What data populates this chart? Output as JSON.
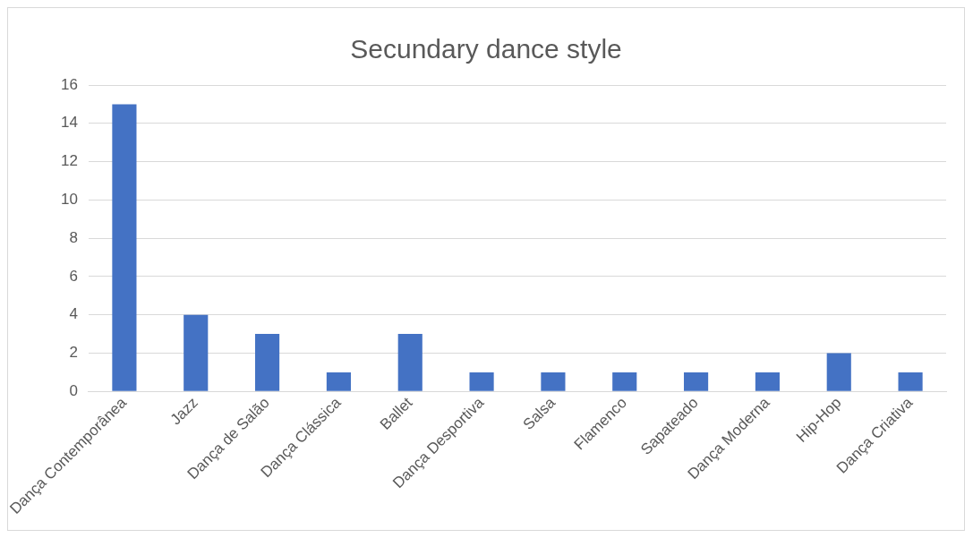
{
  "chart_data": {
    "type": "bar",
    "title": "Secundary dance style",
    "categories": [
      "Dança Contemporânea",
      "Jazz",
      "Dança de Salão",
      "Dança Clássica",
      "Ballet",
      "Dança Desportiva",
      "Salsa",
      "Flamenco",
      "Sapateado",
      "Dança Moderna",
      "Hip-Hop",
      "Dança Criativa"
    ],
    "values": [
      15,
      4,
      3,
      1,
      3,
      1,
      1,
      1,
      1,
      1,
      2,
      1
    ],
    "color": "#4472c4",
    "ylim": [
      0,
      16
    ],
    "yticks": [
      0,
      2,
      4,
      6,
      8,
      10,
      12,
      14,
      16
    ],
    "grid": "y",
    "legend": false
  }
}
